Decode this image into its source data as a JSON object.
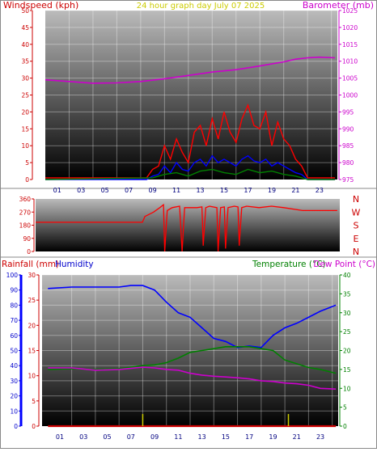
{
  "header": {
    "left_label": "Windspeed (kph)",
    "center_label": "24 hour graph day    July 07 2025",
    "right_label": "Barometer (mb)"
  },
  "colors": {
    "windspeed": "#ff0000",
    "gust": "#0000ff",
    "wind_low": "#008000",
    "barometer": "#cc00cc",
    "direction": "#ff0000",
    "humidity": "#0000ff",
    "temperature": "#008000",
    "dewpoint": "#cc00cc",
    "rainfall": "#cc0000",
    "title": "#cccc00",
    "plot_top": "#bbbbbb",
    "plot_bottom": "#000000"
  },
  "chart_data": [
    {
      "id": "wind-barometer",
      "type": "line",
      "title": "24 hour graph day    July 07 2025",
      "ylabel": "Windspeed (kph)",
      "ylim": [
        0,
        50
      ],
      "yticks": [
        0,
        5,
        10,
        15,
        20,
        25,
        30,
        35,
        40,
        45,
        50
      ],
      "y2label": "Barometer (mb)",
      "y2lim": [
        975,
        1025
      ],
      "y2ticks": [
        975,
        980,
        985,
        990,
        995,
        1000,
        1005,
        1010,
        1015,
        1020,
        1025
      ],
      "xlim": [
        0,
        24.5
      ],
      "xticks": [
        "01",
        "03",
        "05",
        "07",
        "09",
        "11",
        "13",
        "15",
        "17",
        "19",
        "21",
        "23"
      ],
      "grid": true,
      "series": [
        {
          "axis": "y2",
          "x": [
            0,
            2,
            4,
            6,
            8,
            10,
            12,
            14,
            16,
            18,
            20,
            21,
            22,
            23,
            24.3
          ],
          "values": [
            1004.5,
            1004.0,
            1003.5,
            1003.6,
            1004.0,
            1004.8,
            1005.8,
            1006.8,
            1007.5,
            1008.6,
            1009.8,
            1010.6,
            1011.0,
            1011.2,
            1011.0
          ]
        },
        {
          "axis": "y",
          "x": [
            0,
            8.5,
            9.0,
            9.5,
            10.0,
            10.5,
            11.0,
            11.5,
            12.0,
            12.5,
            13.0,
            13.5,
            14.0,
            14.5,
            15.0,
            15.5,
            16.0,
            16.5,
            17.0,
            17.5,
            18.0,
            18.5,
            19.0,
            19.5,
            20.0,
            20.5,
            21.0,
            21.5,
            22.0,
            24.3
          ],
          "values": [
            0.5,
            0.5,
            3,
            4,
            10,
            6,
            12,
            8,
            5,
            14,
            16,
            10,
            18,
            12,
            20,
            14,
            11,
            18,
            22,
            16,
            15,
            20,
            10,
            17,
            12,
            10,
            6,
            4,
            0.5,
            0.5
          ]
        },
        {
          "axis": "y",
          "x": [
            0,
            8.5,
            9.0,
            9.5,
            10.0,
            10.5,
            11.0,
            11.5,
            12.0,
            12.5,
            13.0,
            13.5,
            14.0,
            14.5,
            15.0,
            15.5,
            16.0,
            16.5,
            17.0,
            17.5,
            18.0,
            18.5,
            19.0,
            19.5,
            20.0,
            20.5,
            21.0,
            21.5,
            22.0,
            24.3
          ],
          "values": [
            0,
            0,
            1,
            1.5,
            4,
            2,
            5,
            3,
            2.5,
            5,
            6,
            4,
            7,
            5,
            6,
            5,
            4,
            6,
            7,
            5.5,
            5,
            6,
            4,
            5,
            4,
            3,
            2,
            1.5,
            0,
            0
          ]
        },
        {
          "axis": "y",
          "x": [
            0,
            9.0,
            10.0,
            11.0,
            12.0,
            13.0,
            14.0,
            15.0,
            16.0,
            17.0,
            18.0,
            19.0,
            20.0,
            21.0,
            22.0,
            24.3
          ],
          "values": [
            0,
            0.5,
            1.5,
            2,
            1,
            2.5,
            3,
            2,
            1.5,
            3,
            2,
            2.5,
            1.5,
            1,
            0,
            0
          ]
        }
      ]
    },
    {
      "id": "wind-direction",
      "type": "line",
      "ylim": [
        0,
        360
      ],
      "yticks": [
        0,
        90,
        180,
        270,
        360
      ],
      "ytick_labels": [
        "0",
        "90",
        "180",
        "270",
        "360"
      ],
      "compass": [
        "N",
        "W",
        "S",
        "E",
        "N"
      ],
      "xlim": [
        0,
        24.5
      ],
      "series": [
        {
          "x": [
            0,
            8.6,
            8.8,
            9.5,
            10.0,
            10.3,
            10.4,
            10.6,
            11.0,
            11.6,
            11.8,
            12.0,
            13.0,
            13.4,
            13.5,
            13.7,
            14.0,
            14.6,
            14.7,
            14.9,
            15.2,
            15.3,
            15.5,
            16.0,
            16.3,
            16.4,
            16.6,
            17.0,
            18.0,
            19.0,
            20.0,
            21.5,
            24.3
          ],
          "values": [
            200,
            200,
            240,
            270,
            300,
            320,
            0,
            280,
            300,
            310,
            0,
            300,
            300,
            305,
            40,
            300,
            310,
            300,
            0,
            300,
            305,
            20,
            300,
            310,
            305,
            40,
            300,
            310,
            300,
            310,
            300,
            280,
            280
          ]
        }
      ]
    },
    {
      "id": "rain-humidity-temp",
      "type": "line",
      "legend": [
        "Rainfall (mm)",
        "Humidity",
        "Temperature (°C)",
        "Dew Point (°C)"
      ],
      "ylabel": "Humidity",
      "ylim": [
        0,
        100
      ],
      "yticks": [
        0,
        10,
        20,
        30,
        40,
        50,
        60,
        70,
        80,
        90,
        100
      ],
      "rain_lim": [
        0,
        30
      ],
      "rain_ticks": [
        0,
        5,
        10,
        15,
        20,
        25,
        30
      ],
      "y2label": "Temperature (°C)",
      "y2lim": [
        0,
        40
      ],
      "y2ticks": [
        0,
        5,
        10,
        15,
        20,
        25,
        30,
        35,
        40
      ],
      "xlim": [
        -0.5,
        24.5
      ],
      "xticks": [
        "01",
        "03",
        "05",
        "07",
        "09",
        "11",
        "13",
        "15",
        "17",
        "19",
        "21",
        "23"
      ],
      "grid": true,
      "series": [
        {
          "name": "Humidity",
          "axis": "y",
          "x": [
            0,
            2,
            4,
            6,
            7,
            8,
            9,
            10,
            11,
            12,
            13,
            14,
            15,
            16,
            17,
            18,
            19,
            20,
            21,
            22,
            23,
            24.3
          ],
          "values": [
            91,
            92,
            92,
            92,
            93,
            93,
            90,
            82,
            75,
            72,
            65,
            58,
            56,
            52,
            53,
            52,
            60,
            65,
            68,
            72,
            76,
            80
          ]
        },
        {
          "name": "Temperature (°C)",
          "axis": "y2",
          "x": [
            0,
            2,
            4,
            6,
            8,
            9,
            10,
            11,
            12,
            13,
            14,
            15,
            16,
            17,
            18,
            19,
            20,
            21,
            22,
            23,
            24.3
          ],
          "values": [
            15,
            15.2,
            15,
            15.2,
            16,
            16.2,
            16.8,
            18,
            19.5,
            20,
            20.5,
            21,
            21,
            21,
            20.5,
            20,
            17.5,
            16.5,
            15.5,
            15,
            14
          ]
        },
        {
          "name": "Dew Point (°C)",
          "axis": "y2",
          "x": [
            0,
            2,
            4,
            6,
            8,
            9,
            10,
            11,
            12,
            13,
            14,
            15,
            16,
            17,
            18,
            19,
            20,
            21,
            22,
            23,
            24.3
          ],
          "values": [
            15.4,
            15.4,
            14.8,
            15.0,
            15.6,
            15.4,
            15.0,
            14.8,
            14.0,
            13.5,
            13.2,
            13.0,
            12.8,
            12.5,
            12.0,
            11.8,
            11.4,
            11.2,
            10.8,
            10.0,
            9.8
          ]
        },
        {
          "name": "Rainfall (mm)",
          "axis": "rain",
          "x": [
            0,
            24.3
          ],
          "values": [
            0,
            0
          ],
          "marks_x": [
            8.0,
            20.3
          ]
        }
      ]
    }
  ]
}
